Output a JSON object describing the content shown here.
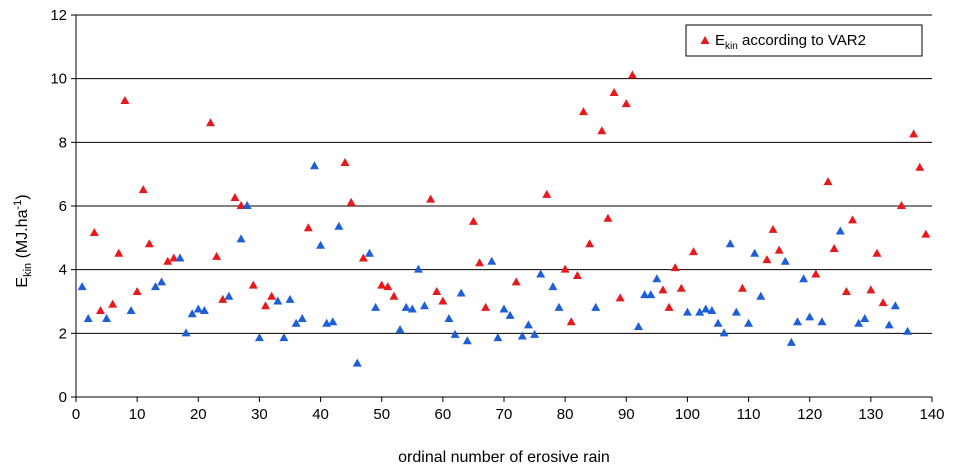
{
  "chart_data": {
    "type": "scatter",
    "xlabel": "ordinal number of erosive rain",
    "ylabel": {
      "main": "E",
      "sub": "kin",
      "rest": " (MJ.ha",
      "sup": "-1",
      "end": ")"
    },
    "xlim": [
      0,
      140
    ],
    "ylim": [
      0,
      12
    ],
    "xticks": [
      "0",
      "10",
      "20",
      "30",
      "40",
      "50",
      "60",
      "70",
      "80",
      "90",
      "100",
      "110",
      "120",
      "130",
      "140"
    ],
    "yticks": [
      "0",
      "2",
      "4",
      "6",
      "8",
      "10",
      "12"
    ],
    "grid": {
      "horizontal": true,
      "vertical": false
    },
    "legend": {
      "position": "top-right",
      "main": "E",
      "sub": "kin",
      "rest": " according to VAR2"
    },
    "colors": {
      "var2": "#e41a1c",
      "other": "#1f5fd6"
    },
    "series": [
      {
        "name": "E kin according to VAR2",
        "color": "#e41a1c",
        "points": [
          [
            3,
            5.15
          ],
          [
            4,
            2.7
          ],
          [
            6,
            2.9
          ],
          [
            7,
            4.5
          ],
          [
            8,
            9.3
          ],
          [
            10,
            3.3
          ],
          [
            11,
            6.5
          ],
          [
            12,
            4.8
          ],
          [
            15,
            4.25
          ],
          [
            16,
            4.35
          ],
          [
            22,
            8.6
          ],
          [
            23,
            4.4
          ],
          [
            24,
            3.05
          ],
          [
            26,
            6.25
          ],
          [
            27,
            6.0
          ],
          [
            29,
            3.5
          ],
          [
            31,
            2.85
          ],
          [
            32,
            3.15
          ],
          [
            38,
            5.3
          ],
          [
            44,
            7.35
          ],
          [
            45,
            6.1
          ],
          [
            47,
            4.35
          ],
          [
            50,
            3.5
          ],
          [
            51,
            3.45
          ],
          [
            52,
            3.15
          ],
          [
            58,
            6.2
          ],
          [
            59,
            3.3
          ],
          [
            60,
            3.0
          ],
          [
            65,
            5.5
          ],
          [
            66,
            4.2
          ],
          [
            67,
            2.8
          ],
          [
            72,
            3.6
          ],
          [
            77,
            6.35
          ],
          [
            80,
            4.0
          ],
          [
            81,
            2.35
          ],
          [
            82,
            3.8
          ],
          [
            83,
            8.95
          ],
          [
            84,
            4.8
          ],
          [
            86,
            8.35
          ],
          [
            87,
            5.6
          ],
          [
            88,
            9.55
          ],
          [
            89,
            3.1
          ],
          [
            90,
            9.2
          ],
          [
            91,
            10.1
          ],
          [
            96,
            3.35
          ],
          [
            97,
            2.8
          ],
          [
            98,
            4.05
          ],
          [
            99,
            3.4
          ],
          [
            101,
            4.55
          ],
          [
            109,
            3.4
          ],
          [
            113,
            4.3
          ],
          [
            114,
            5.25
          ],
          [
            115,
            4.6
          ],
          [
            121,
            3.85
          ],
          [
            123,
            6.75
          ],
          [
            124,
            4.65
          ],
          [
            126,
            3.3
          ],
          [
            127,
            5.55
          ],
          [
            130,
            3.35
          ],
          [
            131,
            4.5
          ],
          [
            132,
            2.95
          ],
          [
            135,
            6.0
          ],
          [
            137,
            8.25
          ],
          [
            138,
            7.2
          ],
          [
            139,
            5.1
          ]
        ]
      },
      {
        "name": "",
        "color": "#1f5fd6",
        "points": [
          [
            1,
            3.45
          ],
          [
            2,
            2.45
          ],
          [
            5,
            2.45
          ],
          [
            9,
            2.7
          ],
          [
            13,
            3.45
          ],
          [
            14,
            3.6
          ],
          [
            17,
            4.35
          ],
          [
            18,
            2.0
          ],
          [
            19,
            2.6
          ],
          [
            20,
            2.75
          ],
          [
            21,
            2.7
          ],
          [
            25,
            3.15
          ],
          [
            27,
            4.95
          ],
          [
            28,
            6.0
          ],
          [
            30,
            1.85
          ],
          [
            33,
            3.0
          ],
          [
            34,
            1.85
          ],
          [
            35,
            3.05
          ],
          [
            36,
            2.3
          ],
          [
            37,
            2.45
          ],
          [
            39,
            7.25
          ],
          [
            40,
            4.75
          ],
          [
            41,
            2.3
          ],
          [
            42,
            2.35
          ],
          [
            43,
            5.35
          ],
          [
            46,
            1.05
          ],
          [
            48,
            4.5
          ],
          [
            49,
            2.8
          ],
          [
            53,
            2.1
          ],
          [
            54,
            2.8
          ],
          [
            55,
            2.75
          ],
          [
            56,
            4.0
          ],
          [
            57,
            2.85
          ],
          [
            61,
            2.45
          ],
          [
            62,
            1.95
          ],
          [
            63,
            3.25
          ],
          [
            64,
            1.75
          ],
          [
            68,
            4.25
          ],
          [
            69,
            1.85
          ],
          [
            70,
            2.75
          ],
          [
            71,
            2.55
          ],
          [
            73,
            1.9
          ],
          [
            74,
            2.25
          ],
          [
            75,
            1.95
          ],
          [
            76,
            3.85
          ],
          [
            78,
            3.45
          ],
          [
            79,
            2.8
          ],
          [
            85,
            2.8
          ],
          [
            92,
            2.2
          ],
          [
            93,
            3.2
          ],
          [
            94,
            3.2
          ],
          [
            95,
            3.7
          ],
          [
            100,
            2.65
          ],
          [
            102,
            2.65
          ],
          [
            103,
            2.75
          ],
          [
            104,
            2.7
          ],
          [
            105,
            2.3
          ],
          [
            106,
            2.0
          ],
          [
            107,
            4.8
          ],
          [
            108,
            2.65
          ],
          [
            110,
            2.3
          ],
          [
            111,
            4.5
          ],
          [
            112,
            3.15
          ],
          [
            116,
            4.25
          ],
          [
            117,
            1.7
          ],
          [
            118,
            2.35
          ],
          [
            119,
            3.7
          ],
          [
            120,
            2.5
          ],
          [
            122,
            2.35
          ],
          [
            125,
            5.2
          ],
          [
            128,
            2.3
          ],
          [
            129,
            2.45
          ],
          [
            133,
            2.25
          ],
          [
            134,
            2.85
          ],
          [
            136,
            2.05
          ]
        ]
      }
    ]
  }
}
